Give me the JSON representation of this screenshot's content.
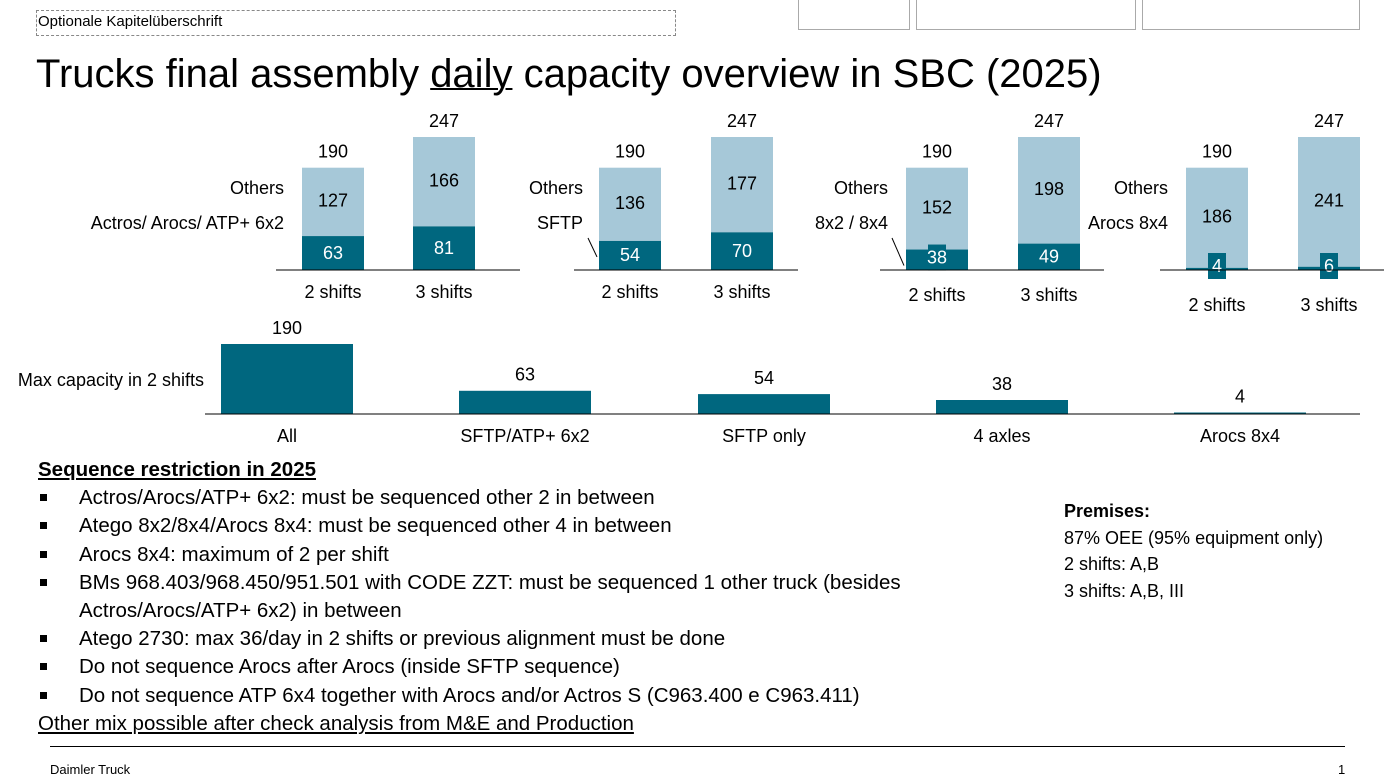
{
  "header": {
    "chapter_title": "Optionale Kapitelüberschrift",
    "title_pre": "Trucks final assembly ",
    "title_underlined": "daily",
    "title_post": " capacity overview in SBC (2025)"
  },
  "colors": {
    "dark": "#00677f",
    "light": "#a6c8d8"
  },
  "chart_data": [
    {
      "type": "bar",
      "stacked": true,
      "categories": [
        "2 shifts",
        "3 shifts"
      ],
      "series": [
        {
          "name": "Actros/ Arocs/ ATP+ 6x2",
          "values": [
            63,
            81
          ]
        },
        {
          "name": "Others",
          "values": [
            127,
            166
          ]
        }
      ],
      "totals": [
        190,
        247
      ]
    },
    {
      "type": "bar",
      "stacked": true,
      "categories": [
        "2 shifts",
        "3 shifts"
      ],
      "series": [
        {
          "name": "SFTP",
          "values": [
            54,
            70
          ]
        },
        {
          "name": "Others",
          "values": [
            136,
            177
          ]
        }
      ],
      "totals": [
        190,
        247
      ]
    },
    {
      "type": "bar",
      "stacked": true,
      "categories": [
        "2 shifts",
        "3 shifts"
      ],
      "series": [
        {
          "name": "8x2 / 8x4",
          "values": [
            38,
            49
          ]
        },
        {
          "name": "Others",
          "values": [
            152,
            198
          ]
        }
      ],
      "totals": [
        190,
        247
      ]
    },
    {
      "type": "bar",
      "stacked": true,
      "categories": [
        "2 shifts",
        "3 shifts"
      ],
      "series": [
        {
          "name": "Arocs 8x4",
          "values": [
            4,
            6
          ]
        },
        {
          "name": "Others",
          "values": [
            186,
            241
          ]
        }
      ],
      "totals": [
        190,
        247
      ]
    },
    {
      "type": "bar",
      "row_label": "Max capacity in 2 shifts",
      "categories": [
        "All",
        "SFTP/ATP+ 6x2",
        "SFTP only",
        "4 axles",
        "Arocs 8x4"
      ],
      "values": [
        190,
        63,
        54,
        38,
        4
      ]
    }
  ],
  "sequence": {
    "heading": "Sequence restriction in 2025",
    "items": [
      "Actros/Arocs/ATP+ 6x2: must be sequenced other 2 in between",
      "Atego 8x2/8x4/Arocs 8x4: must be sequenced other 4 in between",
      "Arocs 8x4: maximum of 2 per shift",
      "BMs 968.403/968.450/951.501 with CODE ZZT: must be sequenced 1 other truck (besides Actros/Arocs/ATP+ 6x2) in between",
      "Atego 2730: max 36/day in 2 shifts or previous alignment must be done",
      "Do not sequence Arocs after Arocs (inside SFTP sequence)",
      "Do not sequence ATP 6x4 together with Arocs and/or Actros S (C963.400 e C963.411)"
    ],
    "footer": "Other mix possible after check analysis from M&E and Production"
  },
  "premises": {
    "heading": "Premises:",
    "lines": [
      "87% OEE (95% equipment only)",
      "2 shifts: A,B",
      "3 shifts: A,B, III"
    ]
  },
  "footer": {
    "company": "Daimler Truck",
    "page": "1"
  }
}
